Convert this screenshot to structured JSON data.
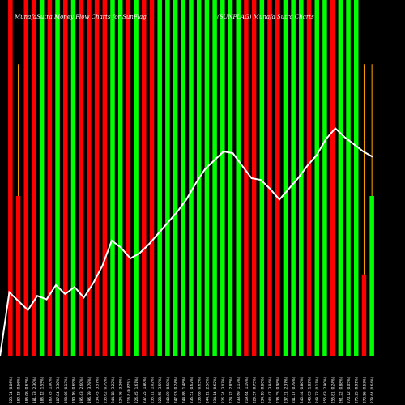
{
  "header": {
    "left_title": "MunafaSutra Money Flow Charts for SunFlag",
    "right_title": "(SUNFLAG) Munafa Sutra Charts"
  },
  "chart_data": {
    "type": "bar",
    "title": "MunafaSutra Money Flow Charts for SunFlag",
    "xlabel": "",
    "ylabel": "",
    "ylim": [
      0,
      1
    ],
    "grid": false,
    "legend": "none",
    "colors": {
      "up": "#00ff00",
      "down": "#ff0000",
      "line": "#ffffff",
      "wick": "#ffa500",
      "background": "#000000"
    },
    "categories": [
      "223.74 (0.86%)",
      "180.13 (0.56%)",
      "186.08 (0.63%)",
      "181.73 (2.30%)",
      "186.12 (1.55%)",
      "180.75 (1.00%)",
      "187.84 (3.30%)",
      "190.06 (0.13%)",
      "190.16 (0.69%)",
      "195.43 (2.60%)",
      "196.79 (3.78%)",
      "234.45 (3.57%)",
      "235.62 (0.79%)",
      "244.18 (3.22%)",
      "224.76 (3.26%)",
      "216.8 (0.87%)",
      "226.45 (1.61%)",
      "237.25 (1.80%)",
      "235.11 (1.02%)",
      "220.55 (3.59%)",
      "240.89 (0.58%)",
      "247.93 (0.24%)",
      "244.88 (1.48%)",
      "236.51 (0.62%)",
      "238.68 (0.65%)",
      "244.11 (2.56%)",
      "234.14 (0.62%)",
      "226.24 (3.07%)",
      "224.72 (2.85%)",
      "233.69 (1.13%)",
      "219.64 (1.19%)",
      "229.57 (0.75%)",
      "234.16 (0.86%)",
      "244.47 (3.84%)",
      "238.35 (0.98%)",
      "237.31 (2.37%)",
      "241.17 (0.78%)",
      "240.44 (0.80%)",
      "248.63 (1.82%)",
      "248.72 (0.11%)",
      "255.63 (2.90%)",
      "255.81 (0.24%)",
      "261.22 (0.88%)",
      "270.12 (0.05%)",
      "275.25 (0.91%)",
      "272.56 (0.53%)",
      "278.64 (0.64%)"
    ],
    "bar_colors": [
      "down",
      "down",
      "down",
      "down",
      "up",
      "down",
      "up",
      "down",
      "up",
      "down",
      "down",
      "down",
      "down",
      "up",
      "up",
      "down",
      "up",
      "down",
      "down",
      "up",
      "up",
      "up",
      "up",
      "up",
      "up",
      "up",
      "up",
      "up",
      "up",
      "up",
      "down",
      "down",
      "up",
      "down",
      "down",
      "up",
      "up",
      "up",
      "down",
      "up",
      "up",
      "down",
      "up",
      "up",
      "up",
      "down",
      "up"
    ],
    "bar_values": [
      1.0,
      0.45,
      1.0,
      1.0,
      1.0,
      1.0,
      1.0,
      1.0,
      1.0,
      1.0,
      1.0,
      1.0,
      1.0,
      1.0,
      1.0,
      1.0,
      1.0,
      1.0,
      1.0,
      1.0,
      1.0,
      1.0,
      1.0,
      1.0,
      1.0,
      1.0,
      1.0,
      1.0,
      1.0,
      1.0,
      1.0,
      1.0,
      1.0,
      1.0,
      1.0,
      1.0,
      1.0,
      1.0,
      1.0,
      1.0,
      1.0,
      1.0,
      1.0,
      1.0,
      1.0,
      0.23,
      0.45
    ],
    "wick_tops": {
      "1": 0.82,
      "45": 0.82,
      "46": 0.82
    },
    "line_values": [
      0,
      0.18,
      0.155,
      0.13,
      0.17,
      0.16,
      0.2,
      0.175,
      0.195,
      0.165,
      0.205,
      0.255,
      0.325,
      0.305,
      0.275,
      0.29,
      0.315,
      0.345,
      0.375,
      0.405,
      0.44,
      0.485,
      0.525,
      0.55,
      0.575,
      0.57,
      0.535,
      0.5,
      0.495,
      0.47,
      0.44,
      0.47,
      0.5,
      0.535,
      0.565,
      0.61,
      0.64,
      0.615,
      0.595,
      0.575,
      0.56
    ]
  }
}
